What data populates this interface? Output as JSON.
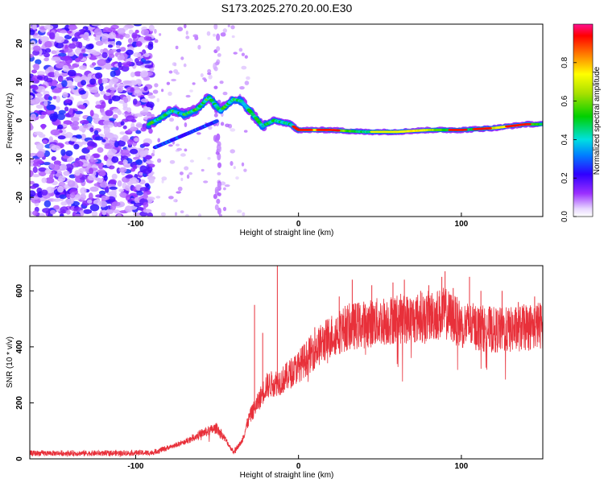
{
  "chart_data": [
    {
      "type": "heatmap",
      "title": "S173.2025.270.20.00.E30",
      "xlabel": "Height of straight line (km)",
      "ylabel": "Frequency (Hz)",
      "xlim": [
        -165,
        150
      ],
      "ylim": [
        -25,
        25
      ],
      "xticks": [
        -100,
        0,
        100
      ],
      "xtick_labels": [
        "-100",
        "0",
        "100"
      ],
      "yticks": [
        -20,
        -10,
        0,
        10,
        20
      ],
      "ytick_labels": [
        "-20",
        "-10",
        "0",
        "10",
        "20"
      ],
      "colorbar": {
        "label": "Normalized spectral amplitude",
        "range": [
          0,
          1
        ],
        "ticks": [
          0.0,
          0.2,
          0.4,
          0.6,
          0.8
        ],
        "tick_labels": [
          "0.0",
          "0.2",
          "0.4",
          "0.6",
          "0.8"
        ]
      },
      "ridge": {
        "description_points_km_hz": [
          [
            -92,
            -1.0
          ],
          [
            -85,
            0.5
          ],
          [
            -78,
            2.5
          ],
          [
            -70,
            1.5
          ],
          [
            -62,
            3.0
          ],
          [
            -55,
            6.0
          ],
          [
            -48,
            2.5
          ],
          [
            -40,
            5.5
          ],
          [
            -35,
            5.0
          ],
          [
            -30,
            2.5
          ],
          [
            -22,
            -1.5
          ],
          [
            -15,
            0.0
          ],
          [
            -5,
            -1.0
          ],
          [
            0,
            -2.5
          ],
          [
            20,
            -2.5
          ],
          [
            40,
            -3.0
          ],
          [
            60,
            -3.0
          ],
          [
            80,
            -2.5
          ],
          [
            100,
            -2.5
          ],
          [
            120,
            -2.0
          ],
          [
            140,
            -1.0
          ],
          [
            150,
            -1.0
          ]
        ]
      }
    },
    {
      "type": "line",
      "xlabel": "Height of straight line (km)",
      "ylabel": "SNR (10 * v/v)",
      "xlim": [
        -165,
        150
      ],
      "ylim": [
        0,
        690
      ],
      "xticks": [
        -100,
        0,
        100
      ],
      "xtick_labels": [
        "-100",
        "0",
        "100"
      ],
      "yticks": [
        0,
        200,
        400,
        600
      ],
      "ytick_labels": [
        "0",
        "200",
        "400",
        "600"
      ],
      "series": [
        {
          "name": "SNR",
          "color": "#e8303a",
          "trend_x": [
            -165,
            -120,
            -90,
            -80,
            -70,
            -60,
            -50,
            -45,
            -40,
            -35,
            -30,
            -25,
            -20,
            -10,
            0,
            10,
            20,
            30,
            40,
            50,
            60,
            70,
            80,
            90,
            100,
            110,
            120,
            130,
            140,
            150
          ],
          "trend_y": [
            20,
            20,
            22,
            40,
            60,
            90,
            110,
            70,
            25,
            60,
            150,
            200,
            260,
            280,
            330,
            390,
            440,
            470,
            480,
            490,
            500,
            500,
            510,
            520,
            480,
            470,
            460,
            460,
            470,
            480
          ],
          "spikes_x": [
            -27,
            -22,
            -13,
            10,
            25,
            33,
            45,
            58,
            65,
            75,
            80,
            88,
            90,
            95,
            105,
            112,
            125,
            135,
            145
          ],
          "spikes_y": [
            550,
            450,
            690,
            470,
            580,
            640,
            620,
            630,
            640,
            600,
            620,
            650,
            670,
            610,
            650,
            600,
            600,
            560,
            580
          ]
        }
      ]
    }
  ],
  "colors": {
    "snr_line": "#e8303a",
    "frame": "#000000",
    "background": "#ffffff"
  }
}
